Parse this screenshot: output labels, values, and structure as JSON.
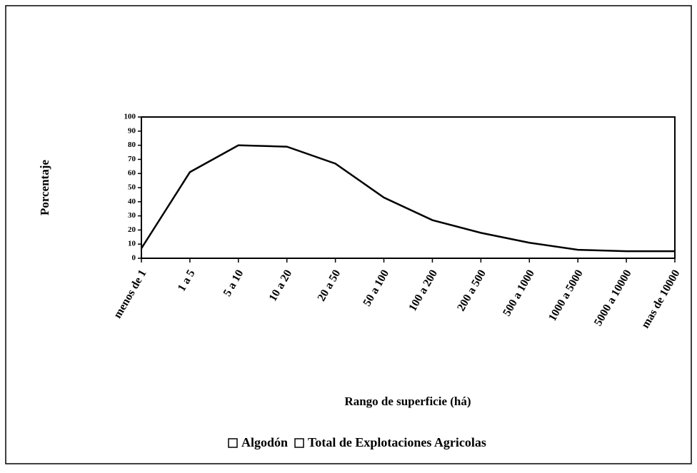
{
  "chart_data": {
    "type": "line",
    "categories": [
      "menos de 1",
      "1 a 5",
      "5 a 10",
      "10 a 20",
      "20 a 50",
      "50 a 100",
      "100 a 200",
      "200 a 500",
      "500 a 1000",
      "1000 a 5000",
      "5000 a 10000",
      "mas de 10000"
    ],
    "values": [
      7,
      61,
      80,
      79,
      67,
      43,
      27,
      18,
      11,
      6,
      5,
      5
    ],
    "color": "#000000",
    "ylim": [
      0,
      100
    ],
    "yticks": [
      0,
      10,
      20,
      30,
      40,
      50,
      60,
      70,
      80,
      90,
      100
    ],
    "y_label": "Porcentaje",
    "x_label": "Rango de superficie (há)",
    "legend": [
      "Algodón",
      "Total de Explotaciones Agricolas"
    ]
  }
}
